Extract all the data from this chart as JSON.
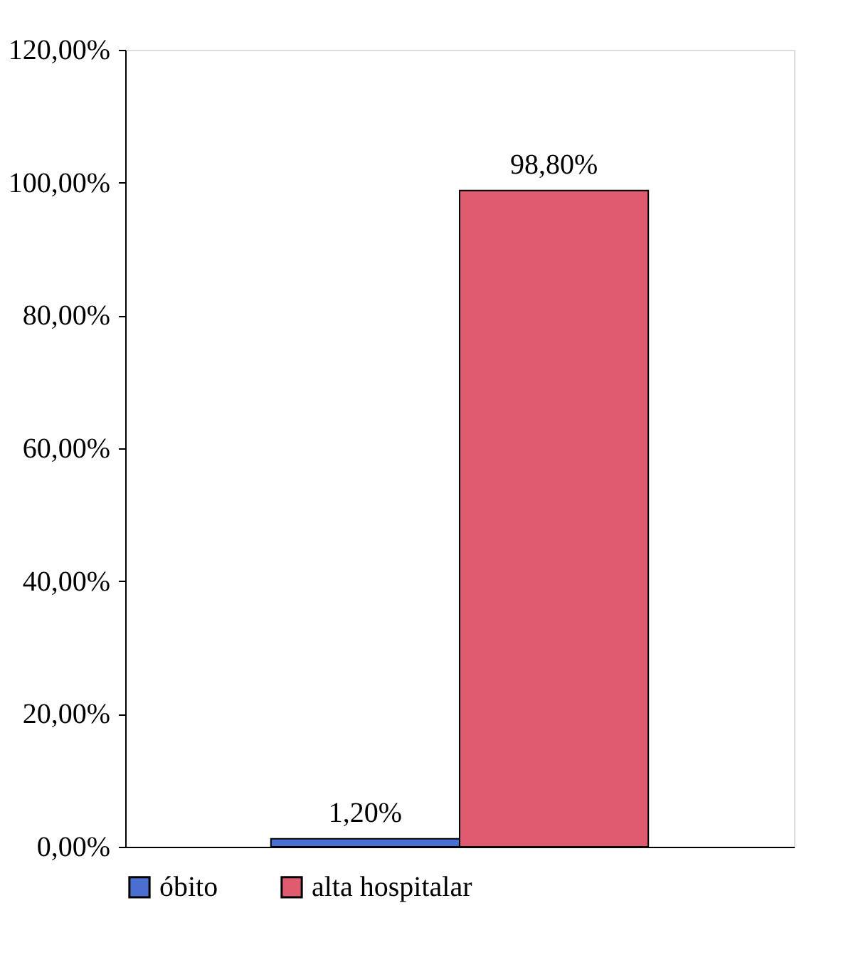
{
  "chart_data": {
    "type": "bar",
    "categories": [
      null
    ],
    "series": [
      {
        "name": "óbito",
        "color": "#4a6fd0",
        "values": [
          1.2
        ],
        "value_labels": [
          "1,20%"
        ]
      },
      {
        "name": "alta hospitalar",
        "color": "#e05a70",
        "values": [
          98.8
        ],
        "value_labels": [
          "98,80%"
        ]
      }
    ],
    "ylim": [
      0,
      120
    ],
    "yticks": [
      {
        "value": 0,
        "label": "0,00%"
      },
      {
        "value": 20,
        "label": "20,00%"
      },
      {
        "value": 40,
        "label": "40,00%"
      },
      {
        "value": 60,
        "label": "60,00%"
      },
      {
        "value": 80,
        "label": "80,00%"
      },
      {
        "value": 100,
        "label": "100,00%"
      },
      {
        "value": 120,
        "label": "120,00%"
      }
    ],
    "grid": false,
    "legend": "bottom",
    "tick_labels": "y"
  }
}
